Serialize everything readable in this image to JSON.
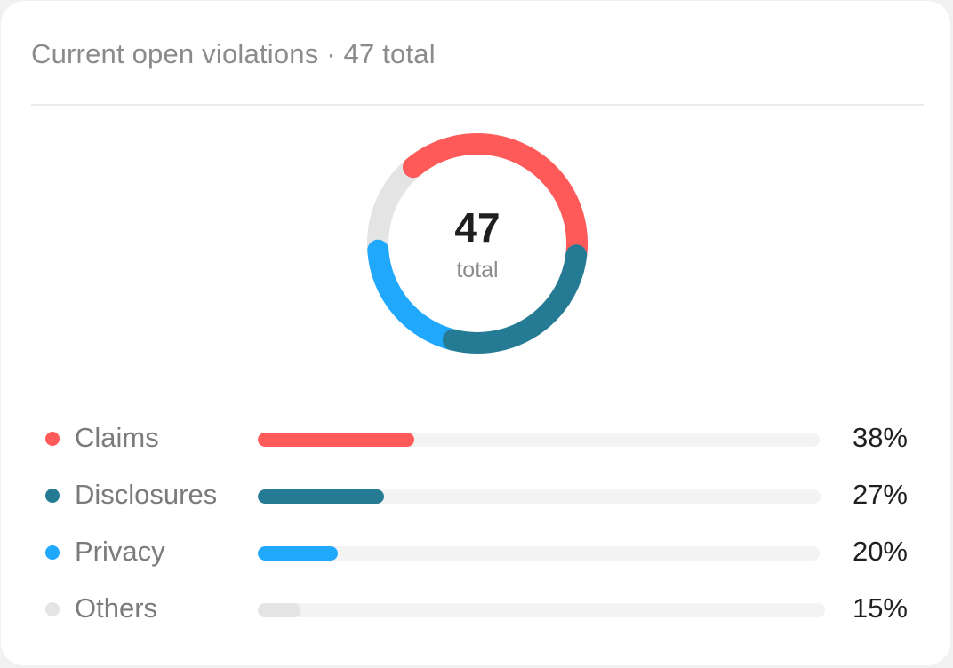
{
  "card": {
    "title": "Current open violations · 47 total"
  },
  "donut": {
    "value": "47",
    "label": "total"
  },
  "colors": {
    "claims": "#ff5a5a",
    "disclosures": "#267b94",
    "privacy": "#1fa8fc",
    "others": "#e4e4e4",
    "track": "#f3f3f3"
  },
  "chart_data": {
    "type": "pie",
    "total": 47,
    "categories": [
      "Claims",
      "Disclosures",
      "Privacy",
      "Others"
    ],
    "values": [
      38,
      27,
      20,
      15
    ],
    "value_labels": [
      "38%",
      "27%",
      "20%",
      "15%"
    ],
    "colors": [
      "#ff5a5a",
      "#267b94",
      "#1fa8fc",
      "#e4e4e4"
    ]
  }
}
